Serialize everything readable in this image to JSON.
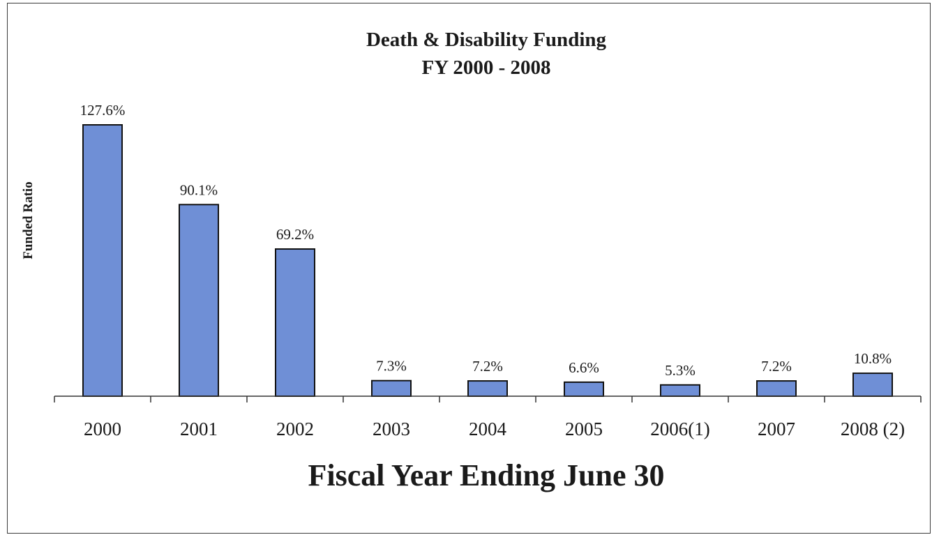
{
  "chart_data": {
    "type": "bar",
    "title": "Death & Disability Funding",
    "subtitle": "FY 2000 - 2008",
    "xlabel": "Fiscal Year Ending June 30",
    "ylabel": "Funded Ratio",
    "categories": [
      "2000",
      "2001",
      "2002",
      "2003",
      "2004",
      "2005",
      "2006(1)",
      "2007",
      "2008 (2)"
    ],
    "values": [
      127.6,
      90.1,
      69.2,
      7.3,
      7.2,
      6.6,
      5.3,
      7.2,
      10.8
    ],
    "data_labels": [
      "127.6%",
      "90.1%",
      "69.2%",
      "7.3%",
      "7.2%",
      "6.6%",
      "5.3%",
      "7.2%",
      "10.8%"
    ],
    "ylim": [
      0,
      127.6
    ],
    "grid": false,
    "legend": "none",
    "colors": {
      "bar_fill": "#6f8fd6",
      "bar_stroke": "#111111",
      "axis": "#333333"
    }
  }
}
